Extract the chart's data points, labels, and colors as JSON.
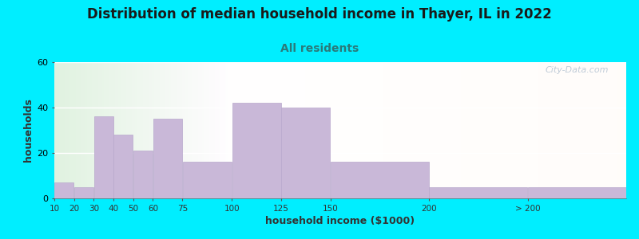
{
  "title": "Distribution of median household income in Thayer, IL in 2022",
  "subtitle": "All residents",
  "xlabel": "household income ($1000)",
  "ylabel": "households",
  "background_outer": "#00eeff",
  "bar_color": "#c9b8d8",
  "bar_edge_color": "#b8a8cc",
  "title_fontsize": 12,
  "title_color": "#1a1a1a",
  "subtitle_fontsize": 10,
  "subtitle_color": "#2a7a7a",
  "values": [
    7,
    5,
    36,
    28,
    21,
    35,
    16,
    42,
    40,
    16,
    5,
    5
  ],
  "bar_lefts": [
    10,
    20,
    30,
    40,
    50,
    60,
    75,
    100,
    125,
    150,
    200,
    250
  ],
  "bar_widths": [
    10,
    10,
    10,
    10,
    10,
    15,
    25,
    25,
    25,
    50,
    50,
    50
  ],
  "xlim": [
    10,
    300
  ],
  "ylim": [
    0,
    60
  ],
  "yticks": [
    0,
    20,
    40,
    60
  ],
  "xtick_labels": [
    "10",
    "20",
    "30",
    "40",
    "50",
    "60",
    "75",
    "100",
    "125",
    "150",
    "200",
    "> 200"
  ],
  "xtick_positions": [
    10,
    20,
    30,
    40,
    50,
    60,
    75,
    100,
    125,
    150,
    200,
    250
  ],
  "watermark": "City-Data.com",
  "watermark_color": "#aabbcc"
}
